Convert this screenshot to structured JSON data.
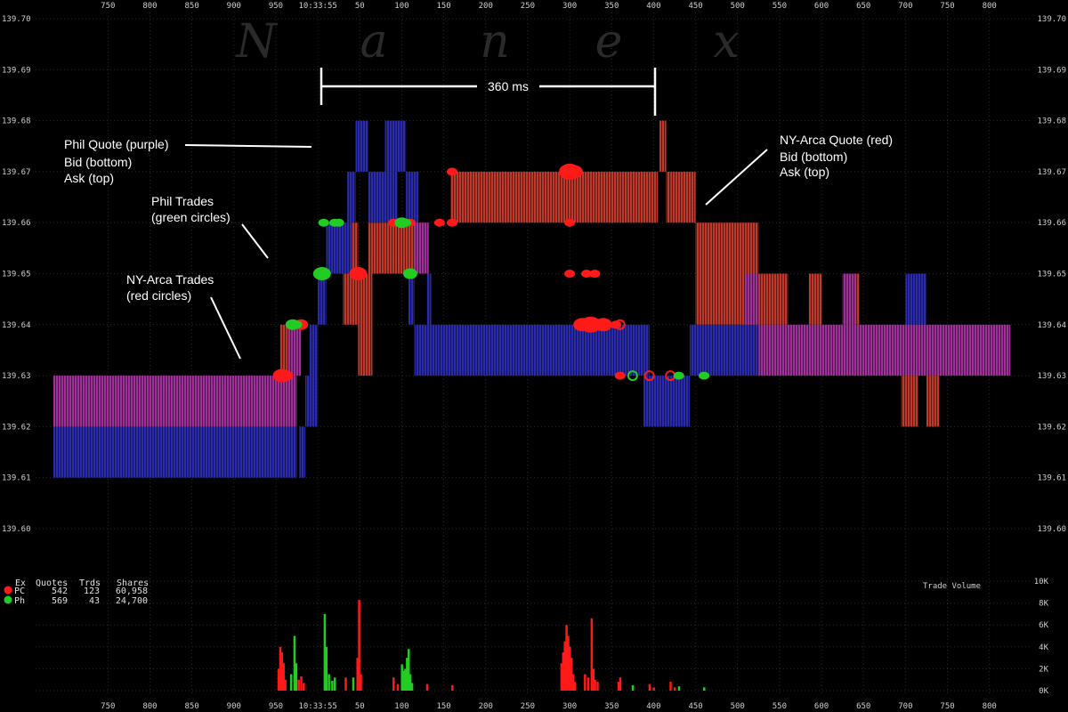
{
  "watermark": [
    "N",
    "a",
    "n",
    "e",
    "x"
  ],
  "colors": {
    "background": "#000000",
    "grid": "#2a2a2a",
    "nyarca_quote": "#c0392b",
    "phil_quote": "#2b2bb0",
    "overlap": "#a0309a",
    "nyarca_trade": "#ff1a1a",
    "phil_trade": "#22cc22",
    "annotation": "#ffffff"
  },
  "annotations": {
    "span": "360 ms",
    "phil_quote": [
      "Phil Quote (purple)",
      "Bid (bottom)",
      "Ask (top)"
    ],
    "nyarca_quote": [
      "NY-Arca Quote (red)",
      "Bid (bottom)",
      "Ask (top)"
    ],
    "phil_trades": [
      "Phil Trades",
      "(green circles)"
    ],
    "nyarca_trades": [
      "NY-Arca Trades",
      "(red circles)"
    ]
  },
  "stats": {
    "headers": [
      "Ex",
      "Quotes",
      "Trds",
      "Shares"
    ],
    "rows": [
      {
        "ex": "PC",
        "quotes": "542",
        "trds": "123",
        "shares": "60,958",
        "color": "#ff1a1a"
      },
      {
        "ex": "Ph",
        "quotes": "569",
        "trds": "43",
        "shares": "24,700",
        "color": "#22cc22"
      }
    ]
  },
  "chart_data": {
    "type": "bar",
    "x": {
      "tick_labels": [
        "750",
        "800",
        "850",
        "900",
        "950",
        "10:33:55",
        "50",
        "100",
        "150",
        "200",
        "250",
        "300",
        "350",
        "400",
        "450",
        "500",
        "550",
        "600",
        "650",
        "700",
        "750",
        "800"
      ],
      "tick_ms": [
        750,
        800,
        850,
        900,
        950,
        1000,
        1050,
        1100,
        1150,
        1200,
        1250,
        1300,
        1350,
        1400,
        1450,
        1500,
        1550,
        1600,
        1650,
        1700,
        1750,
        1800
      ],
      "range_ms": [
        685,
        1830
      ]
    },
    "price_axis": {
      "ylim": [
        139.595,
        139.7
      ],
      "tick_labels": [
        "139.70",
        "139.69",
        "139.68",
        "139.67",
        "139.66",
        "139.65",
        "139.64",
        "139.63",
        "139.62",
        "139.61",
        "139.60"
      ]
    },
    "volume_axis": {
      "title": "Trade Volume",
      "ylim": [
        0,
        10000
      ],
      "tick_labels": [
        "10K",
        "8K",
        "6K",
        "4K",
        "2K",
        "0K"
      ]
    },
    "series": [
      {
        "name": "NY-Arca Quote (red)",
        "segments": [
          [
            955,
            962,
            139.63,
            139.64
          ],
          [
            962,
            980,
            139.63,
            139.64
          ],
          [
            1030,
            1048,
            139.64,
            139.66
          ],
          [
            1048,
            1065,
            139.63,
            139.65
          ],
          [
            1060,
            1095,
            139.65,
            139.66
          ],
          [
            1095,
            1132,
            139.65,
            139.66
          ],
          [
            1158,
            1360,
            139.66,
            139.67
          ],
          [
            1360,
            1405,
            139.66,
            139.67
          ],
          [
            1407,
            1415,
            139.67,
            139.68
          ],
          [
            1415,
            1420,
            139.66,
            139.67
          ],
          [
            1420,
            1450,
            139.66,
            139.67
          ],
          [
            1450,
            1525,
            139.64,
            139.66
          ],
          [
            1525,
            1560,
            139.64,
            139.65
          ],
          [
            1585,
            1600,
            139.64,
            139.65
          ],
          [
            1630,
            1645,
            139.64,
            139.65
          ],
          [
            1695,
            1715,
            139.62,
            139.63
          ],
          [
            1725,
            1740,
            139.62,
            139.63
          ]
        ]
      },
      {
        "name": "Phil Quote (purple)",
        "segments": [
          [
            685,
            975,
            139.61,
            139.62
          ],
          [
            978,
            985,
            139.61,
            139.62
          ],
          [
            985,
            1000,
            139.62,
            139.63
          ],
          [
            990,
            1000,
            139.63,
            139.64
          ],
          [
            1000,
            1010,
            139.64,
            139.65
          ],
          [
            1010,
            1040,
            139.65,
            139.66
          ],
          [
            1035,
            1045,
            139.66,
            139.67
          ],
          [
            1045,
            1060,
            139.67,
            139.68
          ],
          [
            1060,
            1095,
            139.66,
            139.67
          ],
          [
            1080,
            1105,
            139.67,
            139.68
          ],
          [
            1105,
            1120,
            139.66,
            139.67
          ],
          [
            1108,
            1115,
            139.64,
            139.65
          ],
          [
            1130,
            1135,
            139.64,
            139.65
          ],
          [
            1115,
            1145,
            139.63,
            139.64
          ],
          [
            1145,
            1395,
            139.63,
            139.64
          ],
          [
            1388,
            1443,
            139.62,
            139.63
          ],
          [
            1443,
            1490,
            139.63,
            139.64
          ],
          [
            1490,
            1525,
            139.63,
            139.64
          ],
          [
            1700,
            1725,
            139.64,
            139.65
          ]
        ]
      },
      {
        "name": "Overlap (purple)",
        "segments": [
          [
            685,
            975,
            139.62,
            139.63
          ],
          [
            965,
            980,
            139.63,
            139.64
          ],
          [
            1115,
            1132,
            139.65,
            139.66
          ],
          [
            1508,
            1525,
            139.64,
            139.65
          ],
          [
            1625,
            1640,
            139.64,
            139.65
          ],
          [
            1525,
            1825,
            139.63,
            139.64
          ]
        ]
      },
      {
        "name": "NY-Arca Trades (red circles)",
        "points": [
          [
            957,
            139.63,
            3
          ],
          [
            962,
            139.63,
            2
          ],
          [
            980,
            139.64,
            2
          ],
          [
            1048,
            139.65,
            3
          ],
          [
            1090,
            139.66,
            1
          ],
          [
            1110,
            139.66,
            1
          ],
          [
            1145,
            139.66,
            1
          ],
          [
            1160,
            139.67,
            1
          ],
          [
            1160,
            139.66,
            1
          ],
          [
            1300,
            139.66,
            1
          ],
          [
            1300,
            139.65,
            1
          ],
          [
            1300,
            139.67,
            4
          ],
          [
            1305,
            139.67,
            3
          ],
          [
            1320,
            139.65,
            1
          ],
          [
            1330,
            139.65,
            1
          ],
          [
            1315,
            139.64,
            3
          ],
          [
            1325,
            139.64,
            4
          ],
          [
            1340,
            139.64,
            3
          ],
          [
            1355,
            139.64,
            1
          ],
          [
            1360,
            139.63,
            1
          ]
        ],
        "hollow_points": [
          [
            1360,
            139.64
          ],
          [
            1395,
            139.63
          ],
          [
            1420,
            139.63
          ]
        ]
      },
      {
        "name": "Phil Trades (green circles)",
        "points": [
          [
            970,
            139.64,
            2
          ],
          [
            975,
            139.64,
            1
          ],
          [
            1005,
            139.65,
            3
          ],
          [
            1007,
            139.66,
            1
          ],
          [
            1020,
            139.66,
            1
          ],
          [
            1025,
            139.66,
            1
          ],
          [
            1100,
            139.66,
            2
          ],
          [
            1105,
            139.66,
            1
          ],
          [
            1110,
            139.65,
            2
          ],
          [
            1430,
            139.63,
            1
          ],
          [
            1460,
            139.63,
            1
          ]
        ],
        "hollow_points": [
          [
            1375,
            139.63
          ]
        ]
      }
    ],
    "volume": [
      {
        "x": 953,
        "v": 2000,
        "c": "red"
      },
      {
        "x": 955,
        "v": 4000,
        "c": "red"
      },
      {
        "x": 957,
        "v": 3500,
        "c": "red"
      },
      {
        "x": 959,
        "v": 2500,
        "c": "red"
      },
      {
        "x": 961,
        "v": 1000,
        "c": "red"
      },
      {
        "x": 968,
        "v": 1500,
        "c": "green"
      },
      {
        "x": 972,
        "v": 5000,
        "c": "green"
      },
      {
        "x": 974,
        "v": 2500,
        "c": "green"
      },
      {
        "x": 977,
        "v": 1000,
        "c": "red"
      },
      {
        "x": 980,
        "v": 1300,
        "c": "red"
      },
      {
        "x": 983,
        "v": 700,
        "c": "red"
      },
      {
        "x": 1008,
        "v": 7000,
        "c": "green"
      },
      {
        "x": 1010,
        "v": 4000,
        "c": "green"
      },
      {
        "x": 1013,
        "v": 1500,
        "c": "green"
      },
      {
        "x": 1017,
        "v": 900,
        "c": "green"
      },
      {
        "x": 1020,
        "v": 1200,
        "c": "green"
      },
      {
        "x": 1033,
        "v": 1200,
        "c": "red"
      },
      {
        "x": 1042,
        "v": 1200,
        "c": "green"
      },
      {
        "x": 1047,
        "v": 3000,
        "c": "red"
      },
      {
        "x": 1049,
        "v": 8300,
        "c": "red"
      },
      {
        "x": 1051,
        "v": 1500,
        "c": "red"
      },
      {
        "x": 1090,
        "v": 1200,
        "c": "red"
      },
      {
        "x": 1095,
        "v": 600,
        "c": "red"
      },
      {
        "x": 1100,
        "v": 2400,
        "c": "green"
      },
      {
        "x": 1102,
        "v": 1800,
        "c": "green"
      },
      {
        "x": 1104,
        "v": 2000,
        "c": "green"
      },
      {
        "x": 1106,
        "v": 3000,
        "c": "green"
      },
      {
        "x": 1108,
        "v": 3800,
        "c": "green"
      },
      {
        "x": 1110,
        "v": 1500,
        "c": "green"
      },
      {
        "x": 1112,
        "v": 700,
        "c": "green"
      },
      {
        "x": 1130,
        "v": 600,
        "c": "red"
      },
      {
        "x": 1160,
        "v": 500,
        "c": "red"
      },
      {
        "x": 1290,
        "v": 2500,
        "c": "red"
      },
      {
        "x": 1292,
        "v": 3500,
        "c": "red"
      },
      {
        "x": 1294,
        "v": 4500,
        "c": "red"
      },
      {
        "x": 1296,
        "v": 6000,
        "c": "red"
      },
      {
        "x": 1298,
        "v": 5000,
        "c": "red"
      },
      {
        "x": 1300,
        "v": 4000,
        "c": "red"
      },
      {
        "x": 1302,
        "v": 3000,
        "c": "red"
      },
      {
        "x": 1304,
        "v": 1500,
        "c": "red"
      },
      {
        "x": 1306,
        "v": 800,
        "c": "red"
      },
      {
        "x": 1318,
        "v": 1500,
        "c": "red"
      },
      {
        "x": 1322,
        "v": 1200,
        "c": "red"
      },
      {
        "x": 1326,
        "v": 6600,
        "c": "red"
      },
      {
        "x": 1328,
        "v": 2000,
        "c": "red"
      },
      {
        "x": 1330,
        "v": 1000,
        "c": "red"
      },
      {
        "x": 1333,
        "v": 800,
        "c": "red"
      },
      {
        "x": 1358,
        "v": 800,
        "c": "red"
      },
      {
        "x": 1360,
        "v": 1200,
        "c": "red"
      },
      {
        "x": 1375,
        "v": 500,
        "c": "green"
      },
      {
        "x": 1395,
        "v": 600,
        "c": "red"
      },
      {
        "x": 1400,
        "v": 300,
        "c": "red"
      },
      {
        "x": 1420,
        "v": 800,
        "c": "red"
      },
      {
        "x": 1425,
        "v": 300,
        "c": "red"
      },
      {
        "x": 1430,
        "v": 400,
        "c": "green"
      },
      {
        "x": 1460,
        "v": 300,
        "c": "green"
      }
    ]
  }
}
